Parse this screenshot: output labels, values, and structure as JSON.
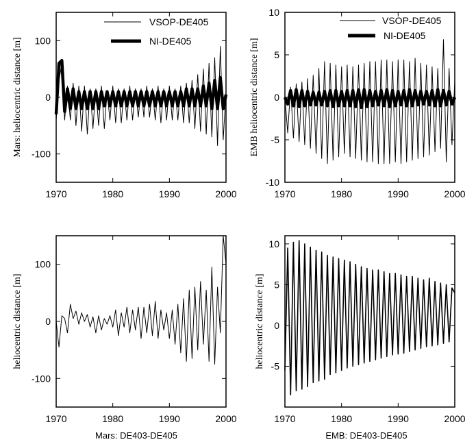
{
  "chart_data": [
    {
      "type": "line",
      "ylabel": "Mars: heliocentric distance [m]",
      "xlabel": "",
      "xlim": [
        1970,
        2000
      ],
      "ylim": [
        -150,
        150
      ],
      "xticks": [
        "1970",
        "1980",
        "1990",
        "2000"
      ],
      "yticks": [
        "100",
        "0",
        "-100"
      ],
      "legend": "top-right",
      "series": [
        {
          "name": "VSOP-DE405",
          "style": "thin",
          "color": "#000000",
          "x": [
            1970.0,
            1970.5,
            1971.0,
            1971.5,
            1972.0,
            1972.5,
            1973.0,
            1973.5,
            1974.0,
            1974.5,
            1975.0,
            1975.5,
            1976.0,
            1976.5,
            1977.0,
            1977.5,
            1978.0,
            1978.5,
            1979.0,
            1979.5,
            1980.0,
            1980.5,
            1981.0,
            1981.5,
            1982.0,
            1982.5,
            1983.0,
            1983.5,
            1984.0,
            1984.5,
            1985.0,
            1985.5,
            1986.0,
            1986.5,
            1987.0,
            1987.5,
            1988.0,
            1988.5,
            1989.0,
            1989.5,
            1990.0,
            1990.5,
            1991.0,
            1991.5,
            1992.0,
            1992.5,
            1993.0,
            1993.5,
            1994.0,
            1994.5,
            1995.0,
            1995.5,
            1996.0,
            1996.5,
            1997.0,
            1997.5,
            1998.0,
            1998.5,
            1999.0,
            1999.5,
            2000.0
          ],
          "values": [
            -40,
            30,
            60,
            -40,
            20,
            -40,
            25,
            -50,
            20,
            -60,
            20,
            -65,
            15,
            -55,
            15,
            -50,
            20,
            -55,
            10,
            -40,
            20,
            -45,
            15,
            -45,
            15,
            -40,
            20,
            -40,
            15,
            -35,
            15,
            -35,
            20,
            -35,
            15,
            -40,
            20,
            -45,
            15,
            -40,
            20,
            -40,
            15,
            -40,
            20,
            -45,
            25,
            -45,
            30,
            -55,
            40,
            -60,
            50,
            -65,
            60,
            -70,
            70,
            -85,
            90,
            -75,
            10
          ]
        },
        {
          "name": "NI-DE405",
          "style": "thick",
          "color": "#000000",
          "x": [
            1970.0,
            1970.5,
            1971.0,
            1971.5,
            1972.0,
            1972.5,
            1973.0,
            1973.5,
            1974.0,
            1974.5,
            1975.0,
            1975.5,
            1976.0,
            1976.5,
            1977.0,
            1977.5,
            1978.0,
            1978.5,
            1979.0,
            1979.5,
            1980.0,
            1980.5,
            1981.0,
            1981.5,
            1982.0,
            1982.5,
            1983.0,
            1983.5,
            1984.0,
            1984.5,
            1985.0,
            1985.5,
            1986.0,
            1986.5,
            1987.0,
            1987.5,
            1988.0,
            1988.5,
            1989.0,
            1989.5,
            1990.0,
            1990.5,
            1991.0,
            1991.5,
            1992.0,
            1992.5,
            1993.0,
            1993.5,
            1994.0,
            1994.5,
            1995.0,
            1995.5,
            1996.0,
            1996.5,
            1997.0,
            1997.5,
            1998.0,
            1998.5,
            1999.0,
            1999.5,
            2000.0
          ],
          "values": [
            -30,
            60,
            65,
            -25,
            15,
            -20,
            15,
            -20,
            10,
            -20,
            10,
            -20,
            10,
            -20,
            10,
            -20,
            10,
            -15,
            10,
            -15,
            10,
            -15,
            10,
            -15,
            10,
            -15,
            10,
            -15,
            10,
            -15,
            10,
            -15,
            10,
            -15,
            10,
            -15,
            10,
            -15,
            10,
            -15,
            10,
            -15,
            10,
            -15,
            10,
            -15,
            15,
            -15,
            15,
            -15,
            15,
            -15,
            20,
            -15,
            25,
            -20,
            30,
            -20,
            35,
            -20,
            5
          ]
        }
      ]
    },
    {
      "type": "line",
      "ylabel": "EMB heliocentric distance [m]",
      "xlabel": "",
      "xlim": [
        1970,
        2000
      ],
      "ylim": [
        -10,
        10
      ],
      "xticks": [
        "1970",
        "1980",
        "1990",
        "2000"
      ],
      "yticks": [
        "10",
        "5",
        "0",
        "-5",
        "-10"
      ],
      "legend": "top-right",
      "series": [
        {
          "name": "VSOP-DE405",
          "style": "thin",
          "color": "#000000",
          "x": [
            1970.0,
            1970.5,
            1971.0,
            1971.5,
            1972.0,
            1972.5,
            1973.0,
            1973.5,
            1974.0,
            1974.5,
            1975.0,
            1975.5,
            1976.0,
            1976.5,
            1977.0,
            1977.5,
            1978.0,
            1978.5,
            1979.0,
            1979.5,
            1980.0,
            1980.5,
            1981.0,
            1981.5,
            1982.0,
            1982.5,
            1983.0,
            1983.5,
            1984.0,
            1984.5,
            1985.0,
            1985.5,
            1986.0,
            1986.5,
            1987.0,
            1987.5,
            1988.0,
            1988.5,
            1989.0,
            1989.5,
            1990.0,
            1990.5,
            1991.0,
            1991.5,
            1992.0,
            1992.5,
            1993.0,
            1993.5,
            1994.0,
            1994.5,
            1995.0,
            1995.5,
            1996.0,
            1996.5,
            1997.0,
            1997.5,
            1998.0,
            1998.5,
            1999.0,
            1999.5,
            2000.0
          ],
          "values": [
            0.0,
            -4.2,
            1.2,
            -4.8,
            1.6,
            -5.2,
            1.8,
            -5.6,
            2.2,
            -6.0,
            2.6,
            -6.6,
            3.4,
            -7.2,
            4.2,
            -7.8,
            4.0,
            -7.4,
            3.8,
            -7.0,
            3.6,
            -6.6,
            3.8,
            -7.0,
            3.6,
            -7.2,
            3.8,
            -7.4,
            4.0,
            -7.6,
            4.2,
            -7.6,
            4.2,
            -7.8,
            4.4,
            -7.8,
            4.4,
            -7.8,
            4.2,
            -7.6,
            4.4,
            -7.8,
            4.4,
            -7.6,
            4.2,
            -7.4,
            4.6,
            -7.2,
            4.0,
            -7.0,
            3.8,
            -6.8,
            3.6,
            -6.4,
            3.4,
            -6.0,
            6.8,
            -7.6,
            3.4,
            -5.6,
            2.0
          ]
        },
        {
          "name": "NI-DE405",
          "style": "thick",
          "color": "#000000",
          "x": [
            1970.0,
            1970.5,
            1971.0,
            1971.5,
            1972.0,
            1972.5,
            1973.0,
            1973.5,
            1974.0,
            1974.5,
            1975.0,
            1975.5,
            1976.0,
            1976.5,
            1977.0,
            1977.5,
            1978.0,
            1978.5,
            1979.0,
            1979.5,
            1980.0,
            1980.5,
            1981.0,
            1981.5,
            1982.0,
            1982.5,
            1983.0,
            1983.5,
            1984.0,
            1984.5,
            1985.0,
            1985.5,
            1986.0,
            1986.5,
            1987.0,
            1987.5,
            1988.0,
            1988.5,
            1989.0,
            1989.5,
            1990.0,
            1990.5,
            1991.0,
            1991.5,
            1992.0,
            1992.5,
            1993.0,
            1993.5,
            1994.0,
            1994.5,
            1995.0,
            1995.5,
            1996.0,
            1996.5,
            1997.0,
            1997.5,
            1998.0,
            1998.5,
            1999.0,
            1999.5,
            2000.0
          ],
          "values": [
            0.0,
            -0.8,
            0.8,
            -1.0,
            0.9,
            -1.1,
            0.8,
            -1.0,
            0.7,
            -0.9,
            0.6,
            -0.9,
            0.6,
            -0.9,
            0.7,
            -1.0,
            0.8,
            -1.1,
            0.8,
            -1.0,
            0.7,
            -1.0,
            0.8,
            -1.0,
            0.8,
            -1.1,
            0.9,
            -1.2,
            0.9,
            -1.1,
            0.8,
            -1.0,
            0.7,
            -0.9,
            0.8,
            -1.0,
            0.9,
            -1.1,
            0.8,
            -1.0,
            0.7,
            -0.9,
            0.8,
            -1.0,
            0.9,
            -1.0,
            0.8,
            -0.9,
            0.7,
            -0.8,
            0.7,
            -0.9,
            0.8,
            -1.0,
            0.9,
            -1.0,
            0.8,
            -0.9,
            0.7,
            -0.8,
            0.0
          ]
        }
      ]
    },
    {
      "type": "line",
      "ylabel": "heliocentric distance [m]",
      "xlabel": "Mars: DE403-DE405",
      "xlim": [
        1970,
        2000
      ],
      "ylim": [
        -150,
        150
      ],
      "xticks": [
        "1970",
        "1980",
        "1990",
        "2000"
      ],
      "yticks": [
        "100",
        "0",
        "-100"
      ],
      "series": [
        {
          "style": "thin",
          "color": "#000000",
          "x": [
            1970.0,
            1970.5,
            1971.0,
            1971.5,
            1972.0,
            1972.5,
            1973.0,
            1973.5,
            1974.0,
            1974.5,
            1975.0,
            1975.5,
            1976.0,
            1976.5,
            1977.0,
            1977.5,
            1978.0,
            1978.5,
            1979.0,
            1979.5,
            1980.0,
            1980.5,
            1981.0,
            1981.5,
            1982.0,
            1982.5,
            1983.0,
            1983.5,
            1984.0,
            1984.5,
            1985.0,
            1985.5,
            1986.0,
            1986.5,
            1987.0,
            1987.5,
            1988.0,
            1988.5,
            1989.0,
            1989.5,
            1990.0,
            1990.5,
            1991.0,
            1991.5,
            1992.0,
            1992.5,
            1993.0,
            1993.5,
            1994.0,
            1994.5,
            1995.0,
            1995.5,
            1996.0,
            1996.5,
            1997.0,
            1997.5,
            1998.0,
            1998.5,
            1999.0,
            1999.5,
            2000.0
          ],
          "values": [
            0,
            -45,
            10,
            5,
            -20,
            30,
            5,
            18,
            -5,
            15,
            0,
            12,
            -10,
            8,
            -20,
            10,
            -15,
            5,
            -5,
            10,
            -10,
            20,
            -25,
            15,
            -10,
            25,
            -20,
            20,
            -15,
            25,
            -30,
            25,
            -20,
            30,
            -25,
            35,
            -30,
            20,
            -15,
            15,
            -30,
            20,
            -40,
            30,
            -55,
            40,
            -70,
            55,
            -65,
            60,
            -50,
            70,
            -40,
            55,
            -70,
            95,
            -75,
            60,
            -20,
            150,
            100
          ]
        }
      ]
    },
    {
      "type": "line",
      "ylabel": "heliocentric distance [m]",
      "xlabel": "EMB:  DE403-DE405",
      "xlim": [
        1970,
        2000
      ],
      "ylim": [
        -10,
        11
      ],
      "xticks": [
        "1970",
        "1980",
        "1990",
        "2000"
      ],
      "yticks": [
        "10",
        "5",
        "0",
        "-5"
      ],
      "series": [
        {
          "style": "medium",
          "color": "#000000",
          "x": [
            1970.0,
            1970.5,
            1971.0,
            1971.5,
            1972.0,
            1972.5,
            1973.0,
            1973.5,
            1974.0,
            1974.5,
            1975.0,
            1975.5,
            1976.0,
            1976.5,
            1977.0,
            1977.5,
            1978.0,
            1978.5,
            1979.0,
            1979.5,
            1980.0,
            1980.5,
            1981.0,
            1981.5,
            1982.0,
            1982.5,
            1983.0,
            1983.5,
            1984.0,
            1984.5,
            1985.0,
            1985.5,
            1986.0,
            1986.5,
            1987.0,
            1987.5,
            1988.0,
            1988.5,
            1989.0,
            1989.5,
            1990.0,
            1990.5,
            1991.0,
            1991.5,
            1992.0,
            1992.5,
            1993.0,
            1993.5,
            1994.0,
            1994.5,
            1995.0,
            1995.5,
            1996.0,
            1996.5,
            1997.0,
            1997.5,
            1998.0,
            1998.5,
            1999.0,
            1999.5,
            2000.0
          ],
          "values": [
            -5.5,
            9.5,
            -8.5,
            10.2,
            -8.0,
            10.4,
            -7.8,
            10.0,
            -7.5,
            9.6,
            -7.0,
            9.2,
            -6.8,
            9.0,
            -6.6,
            8.6,
            -6.0,
            8.4,
            -5.8,
            8.2,
            -5.5,
            8.0,
            -5.2,
            7.8,
            -5.0,
            7.5,
            -4.8,
            7.2,
            -4.6,
            7.0,
            -4.4,
            6.8,
            -4.2,
            6.8,
            -4.0,
            6.6,
            -3.8,
            6.4,
            -3.6,
            6.4,
            -3.5,
            6.2,
            -3.4,
            6.0,
            -3.2,
            6.0,
            -3.0,
            5.8,
            -2.8,
            5.6,
            -2.6,
            5.8,
            -2.5,
            5.4,
            -2.4,
            5.2,
            -2.2,
            5.0,
            -2.0,
            4.6,
            4.0
          ]
        }
      ]
    }
  ]
}
